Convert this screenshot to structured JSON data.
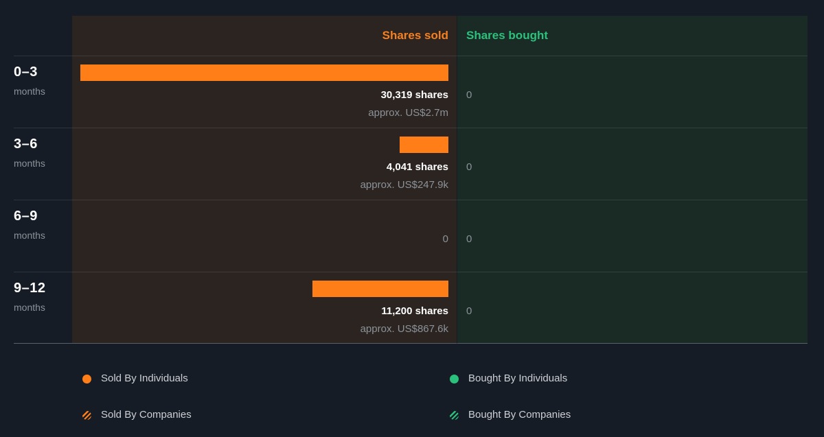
{
  "header": {
    "sold": "Shares sold",
    "bought": "Shares bought"
  },
  "rows": [
    {
      "period": "0–3",
      "unit": "months",
      "sold_value": 30319,
      "sold_text": "30,319 shares",
      "sold_approx": "approx. US$2.7m",
      "bought_text": "0"
    },
    {
      "period": "3–6",
      "unit": "months",
      "sold_value": 4041,
      "sold_text": "4,041 shares",
      "sold_approx": "approx. US$247.9k",
      "bought_text": "0"
    },
    {
      "period": "6–9",
      "unit": "months",
      "sold_value": 0,
      "sold_text": "0",
      "sold_approx": "",
      "bought_text": "0"
    },
    {
      "period": "9–12",
      "unit": "months",
      "sold_value": 11200,
      "sold_text": "11,200 shares",
      "sold_approx": "approx. US$867.6k",
      "bought_text": "0"
    }
  ],
  "legend": {
    "sold_individuals": "Sold By Individuals",
    "sold_companies": "Sold By Companies",
    "bought_individuals": "Bought By Individuals",
    "bought_companies": "Bought By Companies"
  },
  "colors": {
    "background": "#161c26",
    "sold_panel": "#2c2421",
    "bought_panel": "#1a2b25",
    "orange": "#ff7e17",
    "green": "#2bc17c",
    "muted_text": "#8b9299"
  },
  "chart_data": {
    "type": "bar",
    "orientation": "horizontal",
    "title": "Insider transactions volume by recency",
    "categories": [
      "0–3 months",
      "3–6 months",
      "6–9 months",
      "9–12 months"
    ],
    "series": [
      {
        "name": "Shares sold",
        "values": [
          30319,
          4041,
          0,
          11200
        ],
        "approx_usd": [
          "US$2.7m",
          "US$247.9k",
          null,
          "US$867.6k"
        ],
        "color": "#ff7e17"
      },
      {
        "name": "Shares bought",
        "values": [
          0,
          0,
          0,
          0
        ],
        "approx_usd": [
          null,
          null,
          null,
          null
        ],
        "color": "#2bc17c"
      }
    ],
    "max_value": 30319,
    "xlim": [
      0,
      30319
    ],
    "grid": false,
    "legend_entries": [
      "Sold By Individuals",
      "Sold By Companies",
      "Bought By Individuals",
      "Bought By Companies"
    ],
    "legend_position": "bottom"
  }
}
